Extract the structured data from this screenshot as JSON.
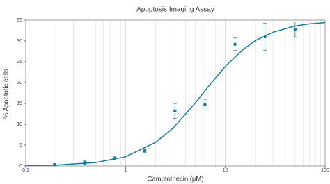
{
  "chart_data": {
    "type": "scatter",
    "title": "Apoptosis Imaging Assay",
    "x_label": "Camptothecin (μM)",
    "y_label": "% Apoptotic cells",
    "xscale": "log",
    "xlim": [
      0.1,
      100
    ],
    "xticks": [
      0.1,
      1,
      10,
      100
    ],
    "x_minor_grid": true,
    "ylim": [
      0,
      35
    ],
    "yticks": [
      0,
      5,
      10,
      15,
      20,
      25,
      30,
      35
    ],
    "series": [
      {
        "color": "#1a7a99",
        "x": [
          0.195,
          0.39,
          0.78,
          1.56,
          3.125,
          6.25,
          12.5,
          25,
          50
        ],
        "values": [
          0.3,
          0.8,
          1.8,
          3.6,
          13.2,
          14.7,
          29.2,
          31.0,
          32.8
        ],
        "errors": [
          0.2,
          0.4,
          0.4,
          0.3,
          1.8,
          1.3,
          1.5,
          3.2,
          1.8
        ]
      }
    ],
    "fit": {
      "color": "#1a7a99",
      "x": [
        0.1,
        0.2,
        0.5,
        1,
        2,
        3,
        5,
        7,
        10,
        15,
        20,
        30,
        50,
        70,
        100
      ],
      "values": [
        0.1,
        0.21,
        0.82,
        2.2,
        5.65,
        9.1,
        15.1,
        19.5,
        23.9,
        27.9,
        30.1,
        32.1,
        33.6,
        34.1,
        34.4
      ]
    }
  }
}
